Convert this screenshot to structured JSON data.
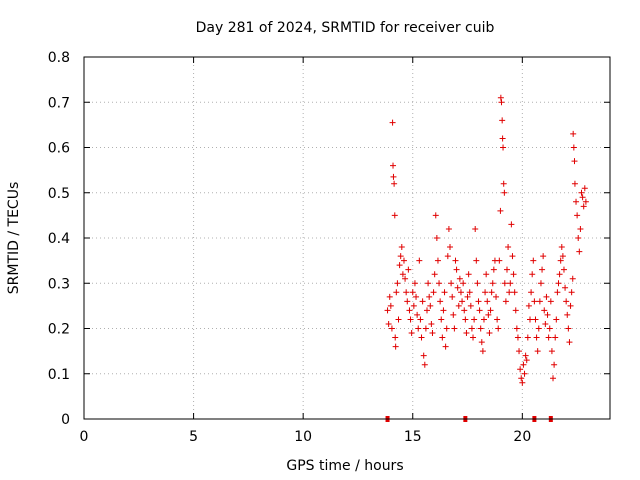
{
  "chart_data": {
    "type": "scatter",
    "title": "Day 281 of 2024, SRMTID for receiver cuib",
    "xlabel": "GPS time / hours",
    "ylabel": "SRMTID / TECUs",
    "xlim": [
      0,
      24
    ],
    "ylim": [
      0,
      0.8
    ],
    "x_ticks": [
      {
        "value": 0,
        "label": "0"
      },
      {
        "value": 5,
        "label": "5"
      },
      {
        "value": 10,
        "label": "10"
      },
      {
        "value": 15,
        "label": "15"
      },
      {
        "value": 20,
        "label": "20"
      }
    ],
    "y_ticks": [
      {
        "value": 0,
        "label": "0"
      },
      {
        "value": 0.1,
        "label": "0.1"
      },
      {
        "value": 0.2,
        "label": "0.2"
      },
      {
        "value": 0.3,
        "label": "0.3"
      },
      {
        "value": 0.4,
        "label": "0.4"
      },
      {
        "value": 0.5,
        "label": "0.5"
      },
      {
        "value": 0.6,
        "label": "0.6"
      },
      {
        "value": 0.7,
        "label": "0.7"
      },
      {
        "value": 0.8,
        "label": "0.8"
      }
    ],
    "grid": true,
    "marker": "+",
    "series_color": "#e00000",
    "series": [
      {
        "name": "SRMTID",
        "points": [
          [
            13.85,
            0.24
          ],
          [
            13.9,
            0.21
          ],
          [
            13.95,
            0.27
          ],
          [
            14.0,
            0.25
          ],
          [
            14.05,
            0.2
          ],
          [
            14.08,
            0.655
          ],
          [
            14.1,
            0.56
          ],
          [
            14.12,
            0.535
          ],
          [
            14.15,
            0.52
          ],
          [
            14.18,
            0.45
          ],
          [
            14.2,
            0.18
          ],
          [
            14.22,
            0.16
          ],
          [
            14.25,
            0.28
          ],
          [
            14.3,
            0.3
          ],
          [
            14.35,
            0.22
          ],
          [
            14.4,
            0.34
          ],
          [
            14.45,
            0.36
          ],
          [
            14.5,
            0.38
          ],
          [
            14.55,
            0.32
          ],
          [
            14.6,
            0.35
          ],
          [
            14.65,
            0.31
          ],
          [
            14.7,
            0.28
          ],
          [
            14.75,
            0.26
          ],
          [
            14.8,
            0.33
          ],
          [
            14.85,
            0.24
          ],
          [
            14.9,
            0.22
          ],
          [
            14.95,
            0.19
          ],
          [
            15.0,
            0.28
          ],
          [
            15.05,
            0.25
          ],
          [
            15.1,
            0.3
          ],
          [
            15.15,
            0.27
          ],
          [
            15.2,
            0.23
          ],
          [
            15.25,
            0.2
          ],
          [
            15.3,
            0.35
          ],
          [
            15.35,
            0.22
          ],
          [
            15.4,
            0.18
          ],
          [
            15.45,
            0.26
          ],
          [
            15.5,
            0.14
          ],
          [
            15.55,
            0.12
          ],
          [
            15.6,
            0.2
          ],
          [
            15.65,
            0.24
          ],
          [
            15.7,
            0.3
          ],
          [
            15.75,
            0.27
          ],
          [
            15.8,
            0.25
          ],
          [
            15.85,
            0.21
          ],
          [
            15.9,
            0.19
          ],
          [
            15.95,
            0.28
          ],
          [
            16.0,
            0.32
          ],
          [
            16.05,
            0.45
          ],
          [
            16.1,
            0.4
          ],
          [
            16.15,
            0.35
          ],
          [
            16.2,
            0.3
          ],
          [
            16.25,
            0.26
          ],
          [
            16.3,
            0.22
          ],
          [
            16.35,
            0.18
          ],
          [
            16.4,
            0.24
          ],
          [
            16.45,
            0.28
          ],
          [
            16.5,
            0.16
          ],
          [
            16.55,
            0.2
          ],
          [
            16.6,
            0.36
          ],
          [
            16.65,
            0.42
          ],
          [
            16.7,
            0.38
          ],
          [
            16.75,
            0.3
          ],
          [
            16.8,
            0.27
          ],
          [
            16.85,
            0.23
          ],
          [
            16.9,
            0.2
          ],
          [
            16.95,
            0.35
          ],
          [
            17.0,
            0.33
          ],
          [
            17.05,
            0.29
          ],
          [
            17.1,
            0.25
          ],
          [
            17.15,
            0.31
          ],
          [
            17.2,
            0.28
          ],
          [
            17.25,
            0.26
          ],
          [
            17.3,
            0.3
          ],
          [
            17.35,
            0.24
          ],
          [
            17.4,
            0.22
          ],
          [
            17.45,
            0.19
          ],
          [
            17.5,
            0.27
          ],
          [
            17.55,
            0.32
          ],
          [
            17.6,
            0.28
          ],
          [
            17.65,
            0.25
          ],
          [
            17.7,
            0.2
          ],
          [
            17.75,
            0.18
          ],
          [
            17.8,
            0.22
          ],
          [
            17.85,
            0.42
          ],
          [
            17.9,
            0.35
          ],
          [
            17.95,
            0.3
          ],
          [
            18.0,
            0.26
          ],
          [
            18.05,
            0.24
          ],
          [
            18.1,
            0.2
          ],
          [
            18.15,
            0.17
          ],
          [
            18.2,
            0.15
          ],
          [
            18.25,
            0.22
          ],
          [
            18.3,
            0.28
          ],
          [
            18.35,
            0.32
          ],
          [
            18.4,
            0.26
          ],
          [
            18.45,
            0.23
          ],
          [
            18.5,
            0.19
          ],
          [
            18.55,
            0.24
          ],
          [
            18.6,
            0.28
          ],
          [
            18.65,
            0.3
          ],
          [
            18.7,
            0.33
          ],
          [
            18.75,
            0.35
          ],
          [
            18.8,
            0.27
          ],
          [
            18.85,
            0.22
          ],
          [
            18.9,
            0.2
          ],
          [
            18.95,
            0.35
          ],
          [
            19.0,
            0.46
          ],
          [
            19.02,
            0.71
          ],
          [
            19.05,
            0.7
          ],
          [
            19.08,
            0.66
          ],
          [
            19.1,
            0.62
          ],
          [
            19.12,
            0.6
          ],
          [
            19.15,
            0.52
          ],
          [
            19.18,
            0.5
          ],
          [
            19.2,
            0.3
          ],
          [
            19.25,
            0.26
          ],
          [
            19.3,
            0.33
          ],
          [
            19.35,
            0.38
          ],
          [
            19.4,
            0.28
          ],
          [
            19.45,
            0.3
          ],
          [
            19.5,
            0.43
          ],
          [
            19.55,
            0.36
          ],
          [
            19.6,
            0.32
          ],
          [
            19.65,
            0.28
          ],
          [
            19.7,
            0.24
          ],
          [
            19.75,
            0.2
          ],
          [
            19.8,
            0.18
          ],
          [
            19.85,
            0.15
          ],
          [
            19.9,
            0.11
          ],
          [
            19.95,
            0.09
          ],
          [
            20.0,
            0.08
          ],
          [
            20.05,
            0.12
          ],
          [
            20.1,
            0.1
          ],
          [
            20.15,
            0.14
          ],
          [
            20.2,
            0.13
          ],
          [
            20.25,
            0.18
          ],
          [
            20.3,
            0.25
          ],
          [
            20.35,
            0.22
          ],
          [
            20.4,
            0.28
          ],
          [
            20.45,
            0.32
          ],
          [
            20.5,
            0.35
          ],
          [
            20.55,
            0.26
          ],
          [
            20.6,
            0.22
          ],
          [
            20.65,
            0.18
          ],
          [
            20.7,
            0.15
          ],
          [
            20.75,
            0.2
          ],
          [
            20.8,
            0.26
          ],
          [
            20.85,
            0.3
          ],
          [
            20.9,
            0.33
          ],
          [
            20.95,
            0.36
          ],
          [
            21.0,
            0.24
          ],
          [
            21.05,
            0.21
          ],
          [
            21.1,
            0.27
          ],
          [
            21.15,
            0.23
          ],
          [
            21.2,
            0.18
          ],
          [
            21.25,
            0.2
          ],
          [
            21.3,
            0.26
          ],
          [
            21.35,
            0.15
          ],
          [
            21.4,
            0.09
          ],
          [
            21.45,
            0.12
          ],
          [
            21.5,
            0.18
          ],
          [
            21.55,
            0.22
          ],
          [
            21.6,
            0.28
          ],
          [
            21.65,
            0.3
          ],
          [
            21.7,
            0.32
          ],
          [
            21.75,
            0.35
          ],
          [
            21.8,
            0.38
          ],
          [
            21.85,
            0.36
          ],
          [
            21.9,
            0.33
          ],
          [
            21.95,
            0.29
          ],
          [
            22.0,
            0.26
          ],
          [
            22.05,
            0.23
          ],
          [
            22.1,
            0.2
          ],
          [
            22.15,
            0.17
          ],
          [
            22.2,
            0.25
          ],
          [
            22.25,
            0.28
          ],
          [
            22.3,
            0.31
          ],
          [
            22.32,
            0.63
          ],
          [
            22.35,
            0.6
          ],
          [
            22.38,
            0.57
          ],
          [
            22.4,
            0.52
          ],
          [
            22.45,
            0.48
          ],
          [
            22.5,
            0.45
          ],
          [
            22.55,
            0.4
          ],
          [
            22.6,
            0.37
          ],
          [
            22.65,
            0.42
          ],
          [
            22.7,
            0.5
          ],
          [
            22.75,
            0.49
          ],
          [
            22.8,
            0.47
          ],
          [
            22.85,
            0.51
          ],
          [
            22.9,
            0.48
          ]
        ]
      }
    ],
    "bottom_markers_x": [
      13.85,
      17.4,
      20.55,
      21.3
    ]
  }
}
